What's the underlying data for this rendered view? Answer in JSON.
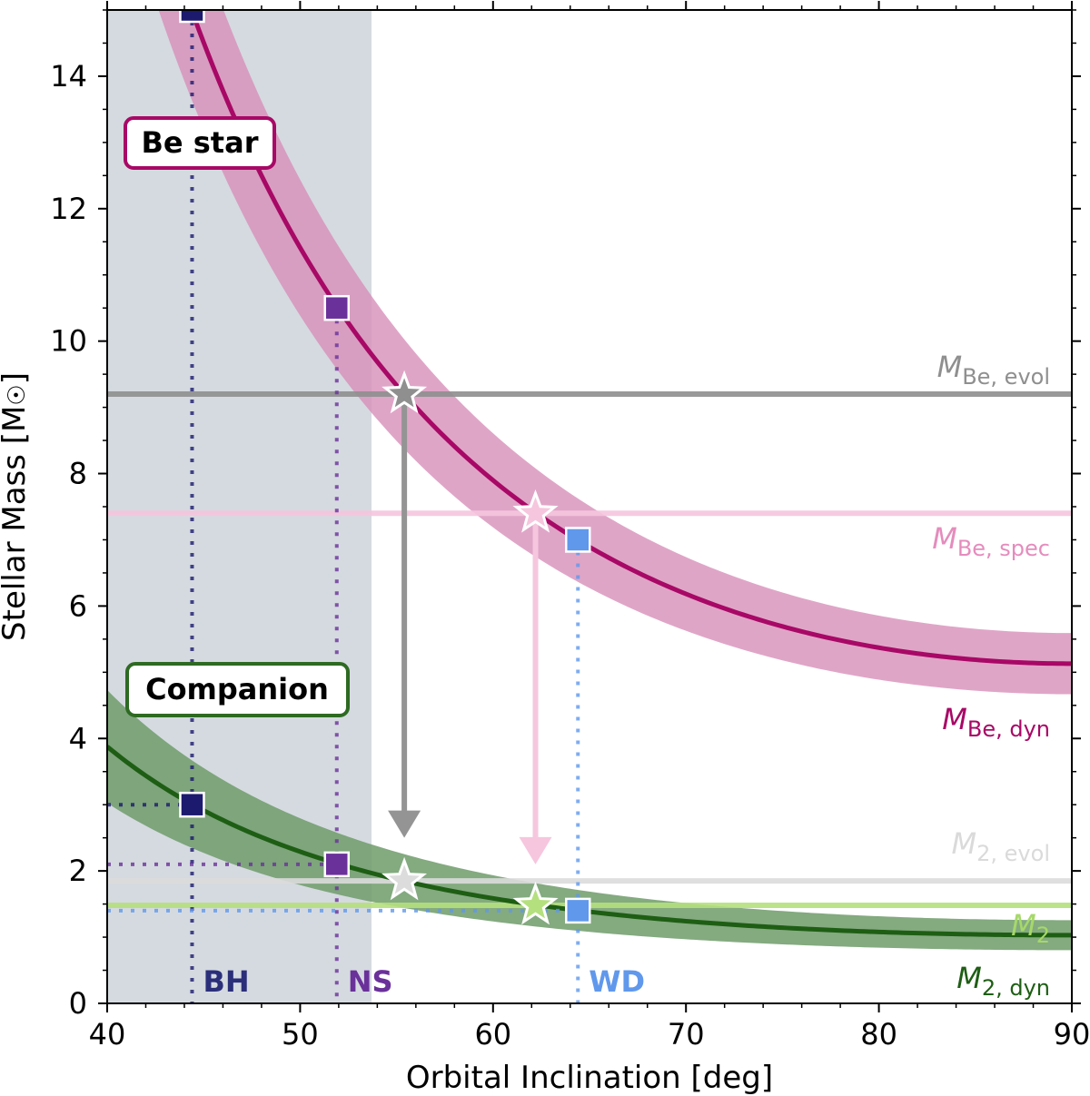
{
  "chart_data": {
    "type": "line",
    "xlabel": "Orbital Inclination [deg]",
    "ylabel": "Stellar Mass [M",
    "ylabel_sun": "☉",
    "ylabel_end": "]",
    "xlim": [
      40,
      90
    ],
    "ylim": [
      0,
      15
    ],
    "xticks": [
      "40",
      "50",
      "60",
      "70",
      "80",
      "90"
    ],
    "yticks": [
      "0",
      "2",
      "4",
      "6",
      "8",
      "10",
      "12",
      "14"
    ],
    "shaded_region": {
      "x": [
        40,
        53.7
      ],
      "color": "#d5dae0"
    },
    "curves": [
      {
        "label_main": "M",
        "label_sub": "Be, dyn",
        "mass_at_90": 5.13,
        "band_fraction": 0.09,
        "color": "#a80866",
        "band_color": "#d78fb9"
      },
      {
        "label_main": "M",
        "label_sub": "2, dyn",
        "mass_at_90": 1.03,
        "band_fraction": 0.22,
        "color": "#1e5e14",
        "band_color": "#6f9b6a"
      }
    ],
    "hlines": [
      {
        "label_main": "M",
        "label_sub": "Be, evol",
        "y": 9.2,
        "color": "#8f8f8f"
      },
      {
        "label_main": "M",
        "label_sub": "Be, spec",
        "y": 7.4,
        "color": "#f6c6de",
        "text_color": "#e58cbd"
      },
      {
        "label_main": "M",
        "label_sub": "2, evol",
        "y": 1.85,
        "color": "#dcdcdc"
      },
      {
        "label_main": "M",
        "label_sub": "2",
        "y": 1.48,
        "color": "#b5e07e",
        "text_color": "#a6d86a"
      }
    ],
    "compact_objects": [
      {
        "label": "BH",
        "x": 44.4,
        "y_be": 15.0,
        "y_comp": 3.0,
        "color": "#1c1a6e",
        "text_color": "#2b2f7a"
      },
      {
        "label": "NS",
        "x": 51.9,
        "y_be": 10.5,
        "y_comp": 2.1,
        "color": "#6a319a",
        "text_color": "#6a319a"
      },
      {
        "label": "WD",
        "x": 64.4,
        "y_be": 7.0,
        "y_comp": 1.4,
        "color": "#6098ec",
        "text_color": "#6098ec"
      }
    ],
    "stars": [
      {
        "x": 55.4,
        "y": 9.2,
        "color": "#8f8f8f"
      },
      {
        "x": 55.4,
        "y": 1.85,
        "color": "#dcdcdc"
      },
      {
        "x": 62.2,
        "y": 7.4,
        "color": "#f6c6de"
      },
      {
        "x": 62.2,
        "y": 1.48,
        "color": "#b5e07e"
      }
    ],
    "arrows": [
      {
        "x": 55.4,
        "from": 9.2,
        "to": 2.5,
        "color": "#949494"
      },
      {
        "x": 62.2,
        "from": 7.4,
        "to": 2.1,
        "color": "#f6c6de"
      }
    ],
    "boxes": [
      {
        "label": "Be star",
        "color": "#a80866"
      },
      {
        "label": "Companion",
        "color": "#2e6a22"
      }
    ]
  }
}
